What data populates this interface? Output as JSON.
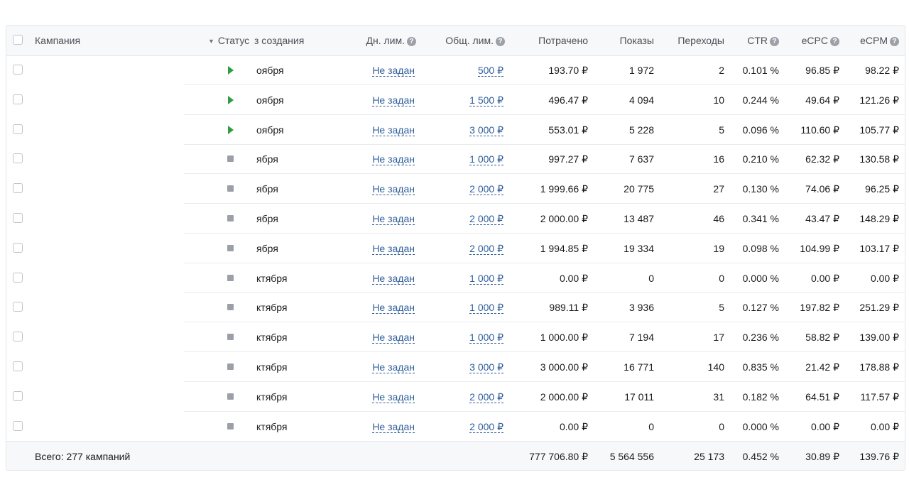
{
  "headers": {
    "campaign": "Кампания",
    "status": "Статус",
    "created": "з создания",
    "daily_limit": "Дн. лим.",
    "total_limit": "Общ. лим.",
    "spent": "Потрачено",
    "impressions": "Показы",
    "clicks": "Переходы",
    "ctr": "CTR",
    "ecpc": "eCPC",
    "ecpm": "eCPM"
  },
  "question_mark": "?",
  "rows": [
    {
      "status": "play",
      "created": "оября",
      "daily": "Не задан",
      "total": "500 ₽",
      "spent": "193.70 ₽",
      "impressions": "1 972",
      "clicks": "2",
      "ctr": "0.101 %",
      "ecpc": "96.85 ₽",
      "ecpm": "98.22 ₽"
    },
    {
      "status": "play",
      "created": "оября",
      "daily": "Не задан",
      "total": "1 500 ₽",
      "spent": "496.47 ₽",
      "impressions": "4 094",
      "clicks": "10",
      "ctr": "0.244 %",
      "ecpc": "49.64 ₽",
      "ecpm": "121.26 ₽"
    },
    {
      "status": "play",
      "created": "оября",
      "daily": "Не задан",
      "total": "3 000 ₽",
      "spent": "553.01 ₽",
      "impressions": "5 228",
      "clicks": "5",
      "ctr": "0.096 %",
      "ecpc": "110.60 ₽",
      "ecpm": "105.77 ₽"
    },
    {
      "status": "stop",
      "created": "ября",
      "daily": "Не задан",
      "total": "1 000 ₽",
      "spent": "997.27 ₽",
      "impressions": "7 637",
      "clicks": "16",
      "ctr": "0.210 %",
      "ecpc": "62.32 ₽",
      "ecpm": "130.58 ₽"
    },
    {
      "status": "stop",
      "created": "ября",
      "daily": "Не задан",
      "total": "2 000 ₽",
      "spent": "1 999.66 ₽",
      "impressions": "20 775",
      "clicks": "27",
      "ctr": "0.130 %",
      "ecpc": "74.06 ₽",
      "ecpm": "96.25 ₽"
    },
    {
      "status": "stop",
      "created": "ября",
      "daily": "Не задан",
      "total": "2 000 ₽",
      "spent": "2 000.00 ₽",
      "impressions": "13 487",
      "clicks": "46",
      "ctr": "0.341 %",
      "ecpc": "43.47 ₽",
      "ecpm": "148.29 ₽"
    },
    {
      "status": "stop",
      "created": "ября",
      "daily": "Не задан",
      "total": "2 000 ₽",
      "spent": "1 994.85 ₽",
      "impressions": "19 334",
      "clicks": "19",
      "ctr": "0.098 %",
      "ecpc": "104.99 ₽",
      "ecpm": "103.17 ₽"
    },
    {
      "status": "stop",
      "created": "ктября",
      "daily": "Не задан",
      "total": "1 000 ₽",
      "spent": "0.00 ₽",
      "impressions": "0",
      "clicks": "0",
      "ctr": "0.000 %",
      "ecpc": "0.00 ₽",
      "ecpm": "0.00 ₽"
    },
    {
      "status": "stop",
      "created": "ктября",
      "daily": "Не задан",
      "total": "1 000 ₽",
      "spent": "989.11 ₽",
      "impressions": "3 936",
      "clicks": "5",
      "ctr": "0.127 %",
      "ecpc": "197.82 ₽",
      "ecpm": "251.29 ₽"
    },
    {
      "status": "stop",
      "created": "ктября",
      "daily": "Не задан",
      "total": "1 000 ₽",
      "spent": "1 000.00 ₽",
      "impressions": "7 194",
      "clicks": "17",
      "ctr": "0.236 %",
      "ecpc": "58.82 ₽",
      "ecpm": "139.00 ₽"
    },
    {
      "status": "stop",
      "created": "ктября",
      "daily": "Не задан",
      "total": "3 000 ₽",
      "spent": "3 000.00 ₽",
      "impressions": "16 771",
      "clicks": "140",
      "ctr": "0.835 %",
      "ecpc": "21.42 ₽",
      "ecpm": "178.88 ₽"
    },
    {
      "status": "stop",
      "created": "ктября",
      "daily": "Не задан",
      "total": "2 000 ₽",
      "spent": "2 000.00 ₽",
      "impressions": "17 011",
      "clicks": "31",
      "ctr": "0.182 %",
      "ecpc": "64.51 ₽",
      "ecpm": "117.57 ₽"
    },
    {
      "status": "stop",
      "created": "ктября",
      "daily": "Не задан",
      "total": "2 000 ₽",
      "spent": "0.00 ₽",
      "impressions": "0",
      "clicks": "0",
      "ctr": "0.000 %",
      "ecpc": "0.00 ₽",
      "ecpm": "0.00 ₽"
    }
  ],
  "footer": {
    "label": "Всего: 277 кампаний",
    "spent": "777 706.80 ₽",
    "impressions": "5 564 556",
    "clicks": "25 173",
    "ctr": "0.452 %",
    "ecpc": "30.89 ₽",
    "ecpm": "139.76 ₽"
  },
  "colors": {
    "play": "#2e9e3f",
    "stop": "#9ba0a8",
    "link": "#2f5d9a"
  }
}
